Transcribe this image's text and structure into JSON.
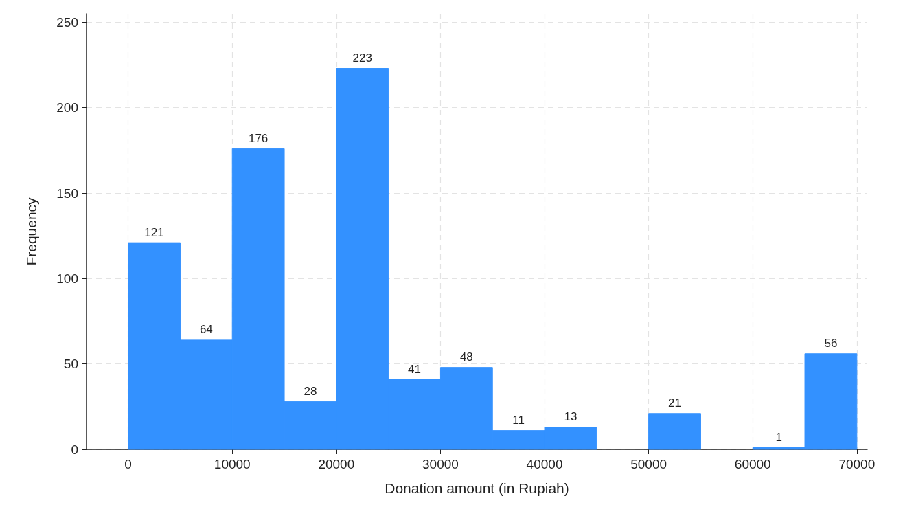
{
  "chart_data": {
    "type": "histogram",
    "xlabel": "Donation amount (in Rupiah)",
    "ylabel": "Frequency",
    "bins": [
      0,
      5000,
      10000,
      15000,
      20000,
      25000,
      30000,
      35000,
      40000,
      45000,
      50000,
      55000,
      60000,
      65000,
      70000
    ],
    "values": [
      121,
      64,
      176,
      28,
      223,
      41,
      48,
      11,
      13,
      0,
      21,
      0,
      1,
      56
    ],
    "value_labels": [
      "121",
      "64",
      "176",
      "28",
      "223",
      "41",
      "48",
      "11",
      "13",
      null,
      "21",
      null,
      "1",
      "56"
    ],
    "color": "#3391ff",
    "xlim": [
      -4000,
      71000
    ],
    "xticks": [
      0,
      10000,
      20000,
      30000,
      40000,
      50000,
      60000,
      70000
    ],
    "ylim": [
      0,
      255
    ],
    "yticks": [
      0,
      50,
      100,
      150,
      200,
      250
    ],
    "grid": true
  }
}
